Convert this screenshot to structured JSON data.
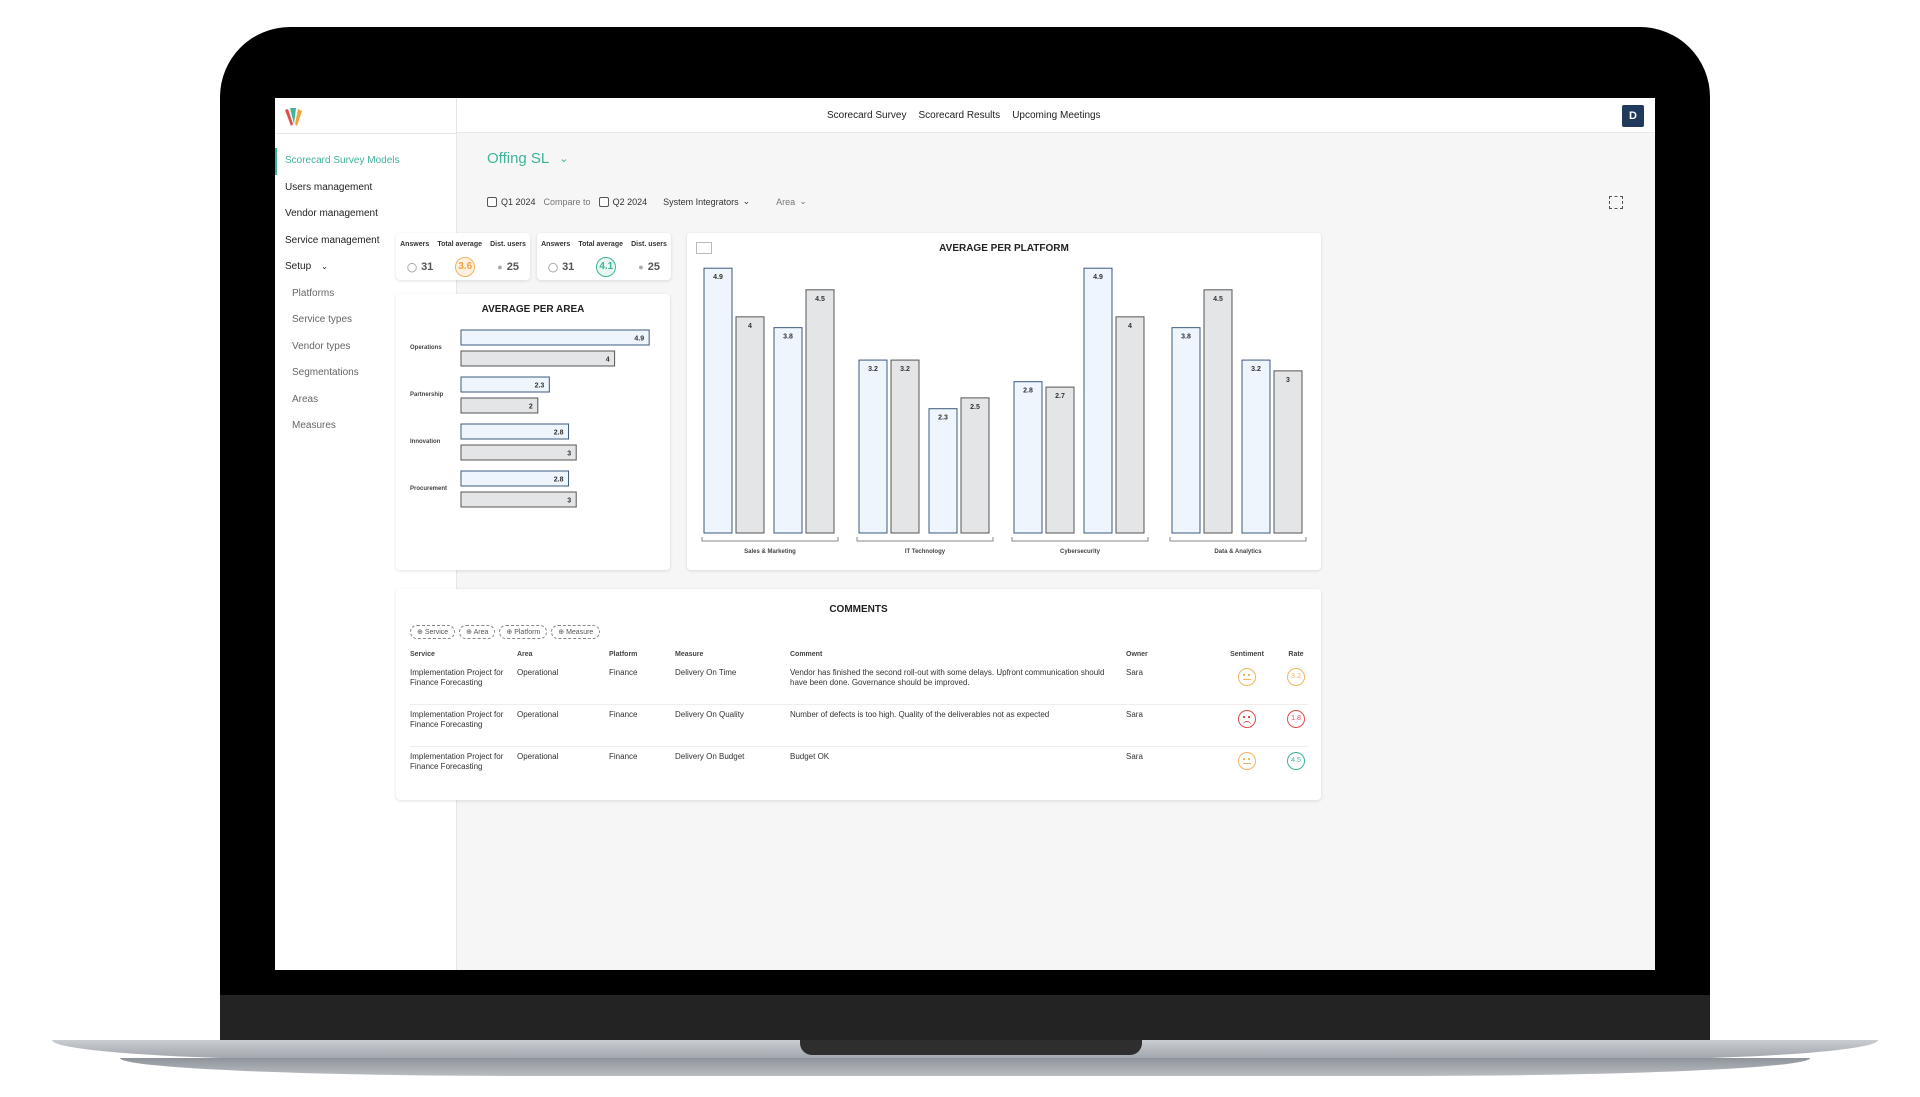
{
  "nav": {
    "items": [
      {
        "label": "Scorecard Survey Models",
        "active": true
      },
      {
        "label": "Users management"
      },
      {
        "label": "Vendor management"
      },
      {
        "label": "Service management"
      },
      {
        "label": "Setup"
      }
    ],
    "setup_items": [
      "Platforms",
      "Service types",
      "Vendor types",
      "Segmentations",
      "Areas",
      "Measures"
    ]
  },
  "topbar": {
    "links": [
      "Scorecard Survey",
      "Scorecard Results",
      "Upcoming Meetings"
    ],
    "avatar_letter": "D"
  },
  "page": {
    "title": "Offing SL"
  },
  "filters": {
    "period_a": "Q1 2024",
    "compare_label": "Compare to",
    "period_b": "Q2 2024",
    "segment": "System Integrators",
    "group_by": "Area"
  },
  "kpis": [
    {
      "answers_label": "Answers",
      "total_label": "Total average",
      "users_label": "Dist. users",
      "answers": "31",
      "total": "3.6",
      "users": "25",
      "total_color": "#f2a23c"
    },
    {
      "answers_label": "Answers",
      "total_label": "Total average",
      "users_label": "Dist. users",
      "answers": "31",
      "total": "4.1",
      "users": "25",
      "total_color": "#3fb39b"
    }
  ],
  "chart_data": [
    {
      "type": "bar",
      "title": "AVERAGE PER AREA",
      "orientation": "horizontal",
      "categories": [
        "Operations",
        "Partnership",
        "Innovation",
        "Procurement"
      ],
      "series": [
        {
          "values": [
            4.9,
            2.3,
            2.8,
            2.8
          ]
        },
        {
          "values": [
            4,
            2,
            3,
            3
          ]
        }
      ],
      "xlim": [
        0,
        5
      ],
      "colors": {
        "fill_a": "#eef5fc",
        "stroke_a": "#3d5a80",
        "fill_b": "#e4e5e7",
        "stroke_b": "#555555"
      }
    },
    {
      "type": "bar",
      "title": "AVERAGE PER PLATFORM",
      "categories": [
        "Sales & Marketing",
        "IT Technology",
        "Cybersecurity",
        "Data & Analytics"
      ],
      "groups": [
        {
          "pairs": [
            [
              4.9,
              4
            ],
            [
              3.8,
              4.5
            ]
          ]
        },
        {
          "pairs": [
            [
              3.2,
              3.2
            ],
            [
              2.3,
              2.5
            ]
          ]
        },
        {
          "pairs": [
            [
              2.8,
              2.7
            ],
            [
              4.9,
              4
            ]
          ]
        },
        {
          "pairs": [
            [
              3.8,
              4.5
            ],
            [
              3.2,
              3
            ]
          ]
        }
      ],
      "ylim": [
        0,
        5
      ]
    }
  ],
  "comments": {
    "title": "COMMENTS",
    "tags": [
      "Service",
      "Area",
      "Platform",
      "Measure"
    ],
    "headers": [
      "Service",
      "Area",
      "Platform",
      "Measure",
      "Comment",
      "Owner",
      "Sentiment",
      "Rate"
    ],
    "rows": [
      {
        "service": "Implementation Project for Finance Forecasting",
        "area": "Operational",
        "platform": "Finance",
        "measure": "Delivery On Time",
        "comment": "Vendor has finished the second roll-out with some delays. Upfront communication should have been done. Governance should be improved.",
        "owner": "Sara",
        "sentiment": "neutral",
        "rate": "3.2",
        "rate_color": "#f2b35f"
      },
      {
        "service": "Implementation Project for Finance Forecasting",
        "area": "Operational",
        "platform": "Finance",
        "measure": "Delivery On Quality",
        "comment": "Number of defects is too high. Quality of the deliverables not as expected",
        "owner": "Sara",
        "sentiment": "sad",
        "rate": "1.8",
        "rate_color": "#e24b4b"
      },
      {
        "service": "Implementation Project for Finance Forecasting",
        "area": "Operational",
        "platform": "Finance",
        "measure": "Delivery On Budget",
        "comment": "Budget OK",
        "owner": "Sara",
        "sentiment": "neutral",
        "rate": "4.5",
        "rate_color": "#3fb39b"
      }
    ]
  }
}
